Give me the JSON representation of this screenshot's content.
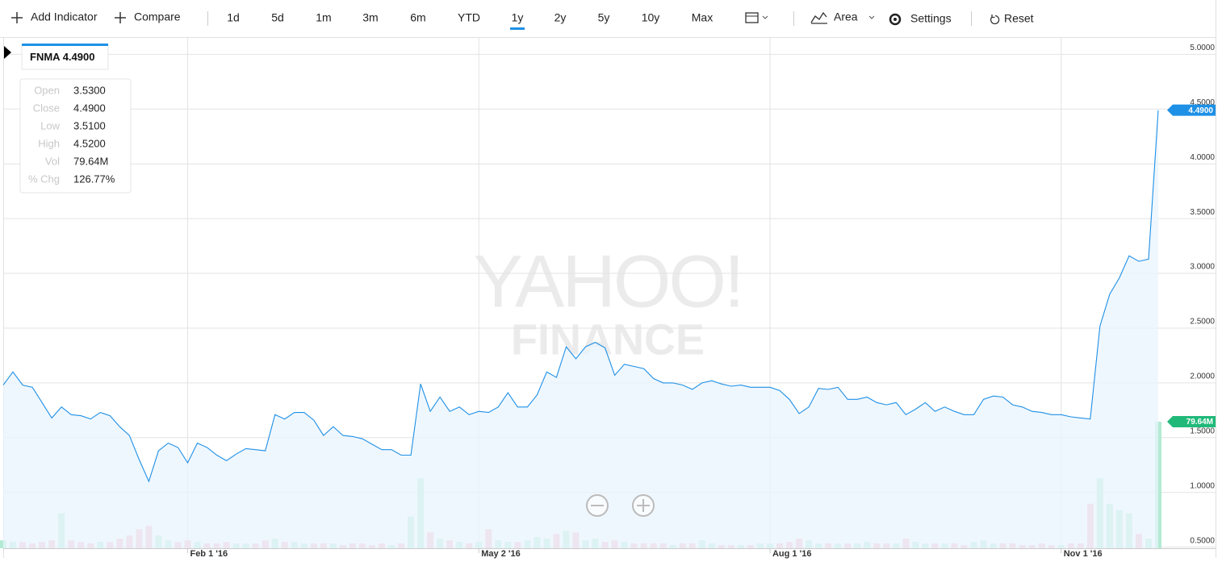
{
  "toolbar": {
    "add_indicator": "Add Indicator",
    "compare": "Compare",
    "ranges": [
      {
        "label": "1d",
        "active": false
      },
      {
        "label": "5d",
        "active": false
      },
      {
        "label": "1m",
        "active": false
      },
      {
        "label": "3m",
        "active": false
      },
      {
        "label": "6m",
        "active": false
      },
      {
        "label": "YTD",
        "active": false
      },
      {
        "label": "1y",
        "active": true
      },
      {
        "label": "2y",
        "active": false
      },
      {
        "label": "5y",
        "active": false
      },
      {
        "label": "10y",
        "active": false
      },
      {
        "label": "Max",
        "active": false
      }
    ],
    "chart_type": "Area",
    "settings": "Settings",
    "reset": "Reset"
  },
  "chart_data": {
    "type": "area",
    "symbol": "FNMA",
    "legend_price": "4.4900",
    "watermark": [
      "YAHOO!",
      "FINANCE"
    ],
    "info": [
      {
        "label": "Open",
        "value": "3.5300"
      },
      {
        "label": "Close",
        "value": "4.4900"
      },
      {
        "label": "Low",
        "value": "3.5100"
      },
      {
        "label": "High",
        "value": "4.5200"
      },
      {
        "label": "Vol",
        "value": "79.64M"
      },
      {
        "label": "% Chg",
        "value": "126.77%"
      }
    ],
    "categories": [
      null,
      null,
      null,
      null,
      null,
      null,
      null,
      null,
      null,
      null,
      null,
      null,
      null,
      null,
      null,
      null,
      null,
      null,
      null,
      "Feb 1 '16",
      null,
      null,
      null,
      null,
      null,
      null,
      null,
      null,
      null,
      null,
      null,
      null,
      null,
      null,
      null,
      null,
      null,
      null,
      null,
      null,
      null,
      null,
      null,
      null,
      null,
      null,
      null,
      null,
      null,
      "May 2 '16",
      null,
      null,
      null,
      null,
      null,
      null,
      null,
      null,
      null,
      null,
      null,
      null,
      null,
      null,
      null,
      null,
      null,
      null,
      null,
      null,
      null,
      null,
      null,
      null,
      null,
      null,
      null,
      null,
      null,
      "Aug 1 '16",
      null,
      null,
      null,
      null,
      null,
      null,
      null,
      null,
      null,
      null,
      null,
      null,
      null,
      null,
      null,
      null,
      null,
      null,
      null,
      null,
      null,
      null,
      null,
      null,
      null,
      null,
      null,
      null,
      null,
      "Nov 1 '16",
      null,
      null,
      null,
      null,
      null,
      null,
      null,
      null,
      null,
      null
    ],
    "series": [
      {
        "name": "FNMA",
        "color": "#1e90e6",
        "fill": "#e9f4fd",
        "values": [
          1.98,
          2.1,
          1.98,
          1.96,
          1.82,
          1.68,
          1.78,
          1.71,
          1.7,
          1.67,
          1.73,
          1.7,
          1.6,
          1.52,
          1.3,
          1.1,
          1.38,
          1.45,
          1.41,
          1.27,
          1.45,
          1.41,
          1.34,
          1.29,
          1.35,
          1.4,
          1.39,
          1.38,
          1.71,
          1.67,
          1.73,
          1.73,
          1.66,
          1.52,
          1.6,
          1.52,
          1.51,
          1.49,
          1.44,
          1.39,
          1.39,
          1.34,
          1.34,
          1.99,
          1.74,
          1.87,
          1.74,
          1.78,
          1.71,
          1.74,
          1.73,
          1.78,
          1.91,
          1.78,
          1.78,
          1.89,
          2.1,
          2.05,
          2.33,
          2.22,
          2.33,
          2.37,
          2.32,
          2.07,
          2.17,
          2.15,
          2.13,
          2.04,
          2.0,
          2.0,
          1.98,
          1.94,
          2.0,
          2.02,
          1.99,
          1.97,
          1.98,
          1.96,
          1.96,
          1.96,
          1.93,
          1.85,
          1.72,
          1.78,
          1.95,
          1.94,
          1.96,
          1.85,
          1.85,
          1.87,
          1.82,
          1.8,
          1.82,
          1.71,
          1.76,
          1.82,
          1.74,
          1.78,
          1.74,
          1.71,
          1.71,
          1.85,
          1.88,
          1.87,
          1.8,
          1.78,
          1.74,
          1.73,
          1.71,
          1.71,
          1.69,
          1.68,
          1.67,
          2.52,
          2.81,
          2.96,
          3.16,
          3.11,
          3.13,
          4.49
        ],
        "last_label": "4.4900"
      }
    ],
    "volume": {
      "up_color": "#b3ead3",
      "down_color": "#f8b9c4",
      "badge_color": "#21b97a",
      "last_label": "79.64M",
      "values": [
        5,
        4,
        4,
        3,
        4,
        5,
        22,
        5,
        4,
        3,
        4,
        4,
        6,
        8,
        12,
        14,
        8,
        5,
        4,
        5,
        4,
        3,
        3,
        4,
        3,
        3,
        3,
        5,
        6,
        4,
        4,
        3,
        3,
        3,
        3,
        2,
        3,
        3,
        2,
        3,
        2,
        3,
        20,
        44,
        10,
        6,
        5,
        4,
        3,
        4,
        12,
        5,
        4,
        4,
        5,
        7,
        6,
        9,
        11,
        10,
        5,
        6,
        4,
        5,
        4,
        3,
        3,
        3,
        3,
        2,
        3,
        3,
        5,
        3,
        2,
        2,
        2,
        2,
        3,
        3,
        3,
        4,
        6,
        5,
        3,
        3,
        3,
        3,
        3,
        4,
        3,
        3,
        3,
        6,
        4,
        3,
        3,
        3,
        3,
        2,
        4,
        5,
        3,
        3,
        3,
        2,
        2,
        3,
        2,
        2,
        3,
        3,
        28,
        44,
        28,
        24,
        22,
        9,
        6,
        79.64
      ]
    },
    "ylim": [
      0.49,
      5.15
    ],
    "yticks": [
      {
        "value": 0.5,
        "label": "0.5000"
      },
      {
        "value": 1,
        "label": "1.0000"
      },
      {
        "value": 1.5,
        "label": "1.5000"
      },
      {
        "value": 2,
        "label": "2.0000"
      },
      {
        "value": 2.5,
        "label": "2.5000"
      },
      {
        "value": 3,
        "label": "3.0000"
      },
      {
        "value": 3.5,
        "label": "3.5000"
      },
      {
        "value": 4,
        "label": "4.0000"
      },
      {
        "value": 4.5,
        "label": "4.5000"
      },
      {
        "value": 5,
        "label": "5.0000"
      }
    ],
    "grid": true
  }
}
